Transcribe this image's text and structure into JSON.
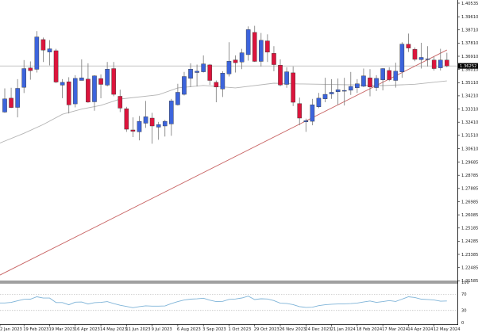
{
  "chart_data": {
    "type": "candlestick",
    "title": "",
    "current_price_label": "1.36252",
    "colors": {
      "bull": "#3c64dc",
      "bear": "#dc143c",
      "ma": "#b4b4b4",
      "trendline": "#c86464",
      "rsi": "#7fb4d8",
      "price_line": "#a0a0a0"
    },
    "price_axis": {
      "range": [
        1.2148,
        1.4072
      ],
      "ticks": [
        "1.40535",
        "1.39610",
        "1.38710",
        "1.37810",
        "1.36910",
        "1.36010",
        "1.35110",
        "1.34210",
        "1.33310",
        "1.32410",
        "1.31510",
        "1.30610",
        "1.29685",
        "1.28785",
        "1.27885",
        "1.26985",
        "1.26085",
        "1.25185",
        "1.24285",
        "1.23385",
        "1.22485",
        "1.21585"
      ]
    },
    "date_axis": {
      "ticks": [
        {
          "label": "2 Jan 2023",
          "date": "2 Jan 2023"
        },
        {
          "label": "19 Feb 2023",
          "date": "19 Feb 2023"
        },
        {
          "label": "19 Mar 2023",
          "date": "19 Mar 2023"
        },
        {
          "label": "16 Apr 2023",
          "date": "16 Apr 2023"
        },
        {
          "label": "14 May 2023",
          "date": "14 May 2023"
        },
        {
          "label": "11 Jun 2023",
          "date": "11 Jun 2023"
        },
        {
          "label": "9 Jul 2023",
          "date": "9 Jul 2023"
        },
        {
          "label": "6 Aug 2023",
          "date": "6 Aug 2023"
        },
        {
          "label": "3 Sep 2023",
          "date": "3 Sep 2023"
        },
        {
          "label": "1 Oct 2023",
          "date": "1 Oct 2023"
        },
        {
          "label": "29 Oct 2023",
          "date": "29 Oct 2023"
        },
        {
          "label": "26 Nov 2023",
          "date": "26 Nov 2023"
        },
        {
          "label": "24 Dec 2023",
          "date": "24 Dec 2023"
        },
        {
          "label": "21 Jan 2024",
          "date": "21 Jan 2024"
        },
        {
          "label": "18 Feb 2024",
          "date": "18 Feb 2024"
        },
        {
          "label": "17 Mar 2024",
          "date": "17 Mar 2024"
        },
        {
          "label": "14 Apr 2024",
          "date": "14 Apr 2024"
        },
        {
          "label": "12 May 2024",
          "date": "12 May 2024"
        }
      ]
    },
    "candles_columns": [
      "date",
      "open",
      "high",
      "low",
      "close"
    ],
    "candles": [
      [
        "29 Jan 2023",
        1.331,
        1.3472,
        1.3305,
        1.34
      ],
      [
        "5 Feb 2023",
        1.3405,
        1.3476,
        1.3337,
        1.3341
      ],
      [
        "12 Feb 2023",
        1.3342,
        1.3535,
        1.3274,
        1.3472
      ],
      [
        "19 Feb 2023",
        1.3479,
        1.3665,
        1.344,
        1.3607
      ],
      [
        "26 Feb 2023",
        1.3611,
        1.3656,
        1.3531,
        1.3593
      ],
      [
        "5 Mar 2023",
        1.3602,
        1.3863,
        1.358,
        1.3823
      ],
      [
        "12 Mar 2023",
        1.3805,
        1.3819,
        1.3652,
        1.3733
      ],
      [
        "19 Mar 2023",
        1.372,
        1.3801,
        1.3629,
        1.3742
      ],
      [
        "26 Mar 2023",
        1.3729,
        1.3742,
        1.3508,
        1.3515
      ],
      [
        "2 Apr 2023",
        1.3494,
        1.3535,
        1.3405,
        1.3513
      ],
      [
        "9 Apr 2023",
        1.3517,
        1.3548,
        1.3301,
        1.3359
      ],
      [
        "16 Apr 2023",
        1.3366,
        1.3562,
        1.3342,
        1.354
      ],
      [
        "23 Apr 2023",
        1.3526,
        1.367,
        1.3526,
        1.3544
      ],
      [
        "30 Apr 2023",
        1.3535,
        1.3643,
        1.3373,
        1.3378
      ],
      [
        "7 May 2023",
        1.338,
        1.3562,
        1.3319,
        1.3557
      ],
      [
        "14 May 2023",
        1.3539,
        1.3567,
        1.3404,
        1.3499
      ],
      [
        "21 May 2023",
        1.3494,
        1.3652,
        1.3485,
        1.3603
      ],
      [
        "28 May 2023",
        1.3607,
        1.3652,
        1.3418,
        1.3431
      ],
      [
        "4 Jun 2023",
        1.3418,
        1.3463,
        1.331,
        1.3337
      ],
      [
        "11 Jun 2023",
        1.3333,
        1.3346,
        1.3175,
        1.3193
      ],
      [
        "18 Jun 2023",
        1.3188,
        1.3274,
        1.3139,
        1.3179
      ],
      [
        "25 Jun 2023",
        1.3175,
        1.3283,
        1.3117,
        1.3247
      ],
      [
        "2 Jul 2023",
        1.3234,
        1.3386,
        1.3202,
        1.3278
      ],
      [
        "9 Jul 2023",
        1.3269,
        1.3305,
        1.3094,
        1.3215
      ],
      [
        "16 Jul 2023",
        1.3207,
        1.3243,
        1.3121,
        1.3225
      ],
      [
        "23 Jul 2023",
        1.3215,
        1.3256,
        1.3143,
        1.3247
      ],
      [
        "30 Jul 2023",
        1.3229,
        1.34,
        1.3148,
        1.3386
      ],
      [
        "6 Aug 2023",
        1.336,
        1.3503,
        1.3355,
        1.3445
      ],
      [
        "13 Aug 2023",
        1.3431,
        1.3584,
        1.3423,
        1.3553
      ],
      [
        "20 Aug 2023",
        1.354,
        1.3643,
        1.3481,
        1.3603
      ],
      [
        "27 Aug 2023",
        1.358,
        1.3634,
        1.3485,
        1.3589
      ],
      [
        "3 Sep 2023",
        1.3585,
        1.3697,
        1.358,
        1.3639
      ],
      [
        "10 Sep 2023",
        1.3632,
        1.3639,
        1.3495,
        1.3526
      ],
      [
        "17 Sep 2023",
        1.3513,
        1.3526,
        1.3377,
        1.3481
      ],
      [
        "24 Sep 2023",
        1.3468,
        1.3589,
        1.3413,
        1.3576
      ],
      [
        "1 Oct 2023",
        1.3571,
        1.3787,
        1.3553,
        1.3657
      ],
      [
        "8 Oct 2023",
        1.3666,
        1.3697,
        1.358,
        1.3647
      ],
      [
        "15 Oct 2023",
        1.3652,
        1.3742,
        1.3603,
        1.3715
      ],
      [
        "22 Oct 2023",
        1.3702,
        1.3895,
        1.3661,
        1.3873
      ],
      [
        "29 Oct 2023",
        1.3854,
        1.3899,
        1.3652,
        1.3656
      ],
      [
        "5 Nov 2023",
        1.3656,
        1.385,
        1.3621,
        1.38
      ],
      [
        "12 Nov 2023",
        1.3796,
        1.3841,
        1.3652,
        1.3719
      ],
      [
        "19 Nov 2023",
        1.3711,
        1.376,
        1.3589,
        1.3634
      ],
      [
        "26 Nov 2023",
        1.363,
        1.367,
        1.3486,
        1.3495
      ],
      [
        "3 Dec 2023",
        1.3499,
        1.3616,
        1.3476,
        1.3585
      ],
      [
        "10 Dec 2023",
        1.3578,
        1.3621,
        1.3351,
        1.3377
      ],
      [
        "17 Dec 2023",
        1.3368,
        1.3409,
        1.322,
        1.3269
      ],
      [
        "24 Dec 2023",
        1.3243,
        1.3265,
        1.3175,
        1.3251
      ],
      [
        "31 Dec 2023",
        1.3247,
        1.34,
        1.322,
        1.336
      ],
      [
        "7 Jan 2024",
        1.3346,
        1.3441,
        1.3337,
        1.3405
      ],
      [
        "14 Jan 2024",
        1.34,
        1.3544,
        1.3377,
        1.3431
      ],
      [
        "21 Jan 2024",
        1.3434,
        1.3535,
        1.34,
        1.3445
      ],
      [
        "28 Jan 2024",
        1.3449,
        1.3539,
        1.3359,
        1.3463
      ],
      [
        "4 Feb 2024",
        1.3454,
        1.3544,
        1.3355,
        1.3458
      ],
      [
        "11 Feb 2024",
        1.3459,
        1.3584,
        1.3427,
        1.3485
      ],
      [
        "18 Feb 2024",
        1.3476,
        1.3535,
        1.344,
        1.3503
      ],
      [
        "25 Feb 2024",
        1.3486,
        1.3607,
        1.3481,
        1.3557
      ],
      [
        "3 Mar 2024",
        1.3544,
        1.3603,
        1.3418,
        1.3481
      ],
      [
        "10 Mar 2024",
        1.3477,
        1.3562,
        1.3454,
        1.354
      ],
      [
        "17 Mar 2024",
        1.353,
        1.3611,
        1.3458,
        1.3607
      ],
      [
        "24 Mar 2024",
        1.3594,
        1.3616,
        1.3521,
        1.3531
      ],
      [
        "31 Mar 2024",
        1.3526,
        1.3647,
        1.3477,
        1.3589
      ],
      [
        "7 Apr 2024",
        1.3584,
        1.3787,
        1.3544,
        1.3774
      ],
      [
        "14 Apr 2024",
        1.3773,
        1.3846,
        1.372,
        1.3747
      ],
      [
        "21 Apr 2024",
        1.3738,
        1.3751,
        1.3657,
        1.367
      ],
      [
        "28 Apr 2024",
        1.3668,
        1.3783,
        1.3607,
        1.3683
      ],
      [
        "5 May 2024",
        1.3672,
        1.376,
        1.3621,
        1.3674
      ],
      [
        "12 May 2024",
        1.3665,
        1.3688,
        1.3593,
        1.3607
      ],
      [
        "19 May 2024",
        1.3612,
        1.3742,
        1.3594,
        1.3665
      ],
      [
        "26 May 2024",
        1.3665,
        1.3715,
        1.3616,
        1.3625
      ]
    ],
    "moving_average": [
      [
        "29 Jan 2023",
        1.3112
      ],
      [
        "19 Feb 2023",
        1.3165
      ],
      [
        "12 Mar 2023",
        1.3225
      ],
      [
        "2 Apr 2023",
        1.3295
      ],
      [
        "23 Apr 2023",
        1.333
      ],
      [
        "14 May 2023",
        1.3356
      ],
      [
        "4 Jun 2023",
        1.3399
      ],
      [
        "16 Jul 2023",
        1.3428
      ],
      [
        "6 Aug 2023",
        1.3475
      ],
      [
        "3 Sep 2023",
        1.3492
      ],
      [
        "8 Oct 2023",
        1.3475
      ],
      [
        "19 Nov 2023",
        1.3507
      ],
      [
        "17 Dec 2023",
        1.3502
      ],
      [
        "11 Feb 2024",
        1.3496
      ],
      [
        "17 Mar 2024",
        1.3491
      ],
      [
        "21 Apr 2024",
        1.35
      ],
      [
        "26 May 2024",
        1.3523
      ]
    ],
    "trendline": [
      [
        "29 Jan 2023",
        1.2214
      ],
      [
        "26 May 2024",
        1.3734
      ]
    ],
    "rsi_panel": {
      "range": [
        0,
        100
      ],
      "ticks": [
        "100",
        "70",
        "30",
        "0"
      ],
      "levels": [
        70,
        30
      ],
      "values": [
        48.7,
        50,
        54,
        57.6,
        58,
        64,
        60.9,
        60.9,
        49.7,
        49.7,
        44,
        50.5,
        51,
        46,
        49.5,
        50,
        52,
        47,
        43,
        40,
        36.8,
        39.5,
        41.5,
        40.8,
        40.7,
        41.2,
        47,
        52,
        56,
        58,
        58.9,
        60.5,
        55.5,
        52,
        52.5,
        57.4,
        58.5,
        61,
        65.5,
        57,
        59,
        58.5,
        54.5,
        48,
        47.5,
        44.5,
        39.5,
        37.5,
        38,
        42,
        44,
        45.5,
        46,
        46.5,
        47,
        48.5,
        51,
        53.5,
        50,
        52,
        54.5,
        52.4,
        58,
        64,
        62.2,
        58,
        57.3,
        56,
        53,
        53.5
      ]
    }
  }
}
